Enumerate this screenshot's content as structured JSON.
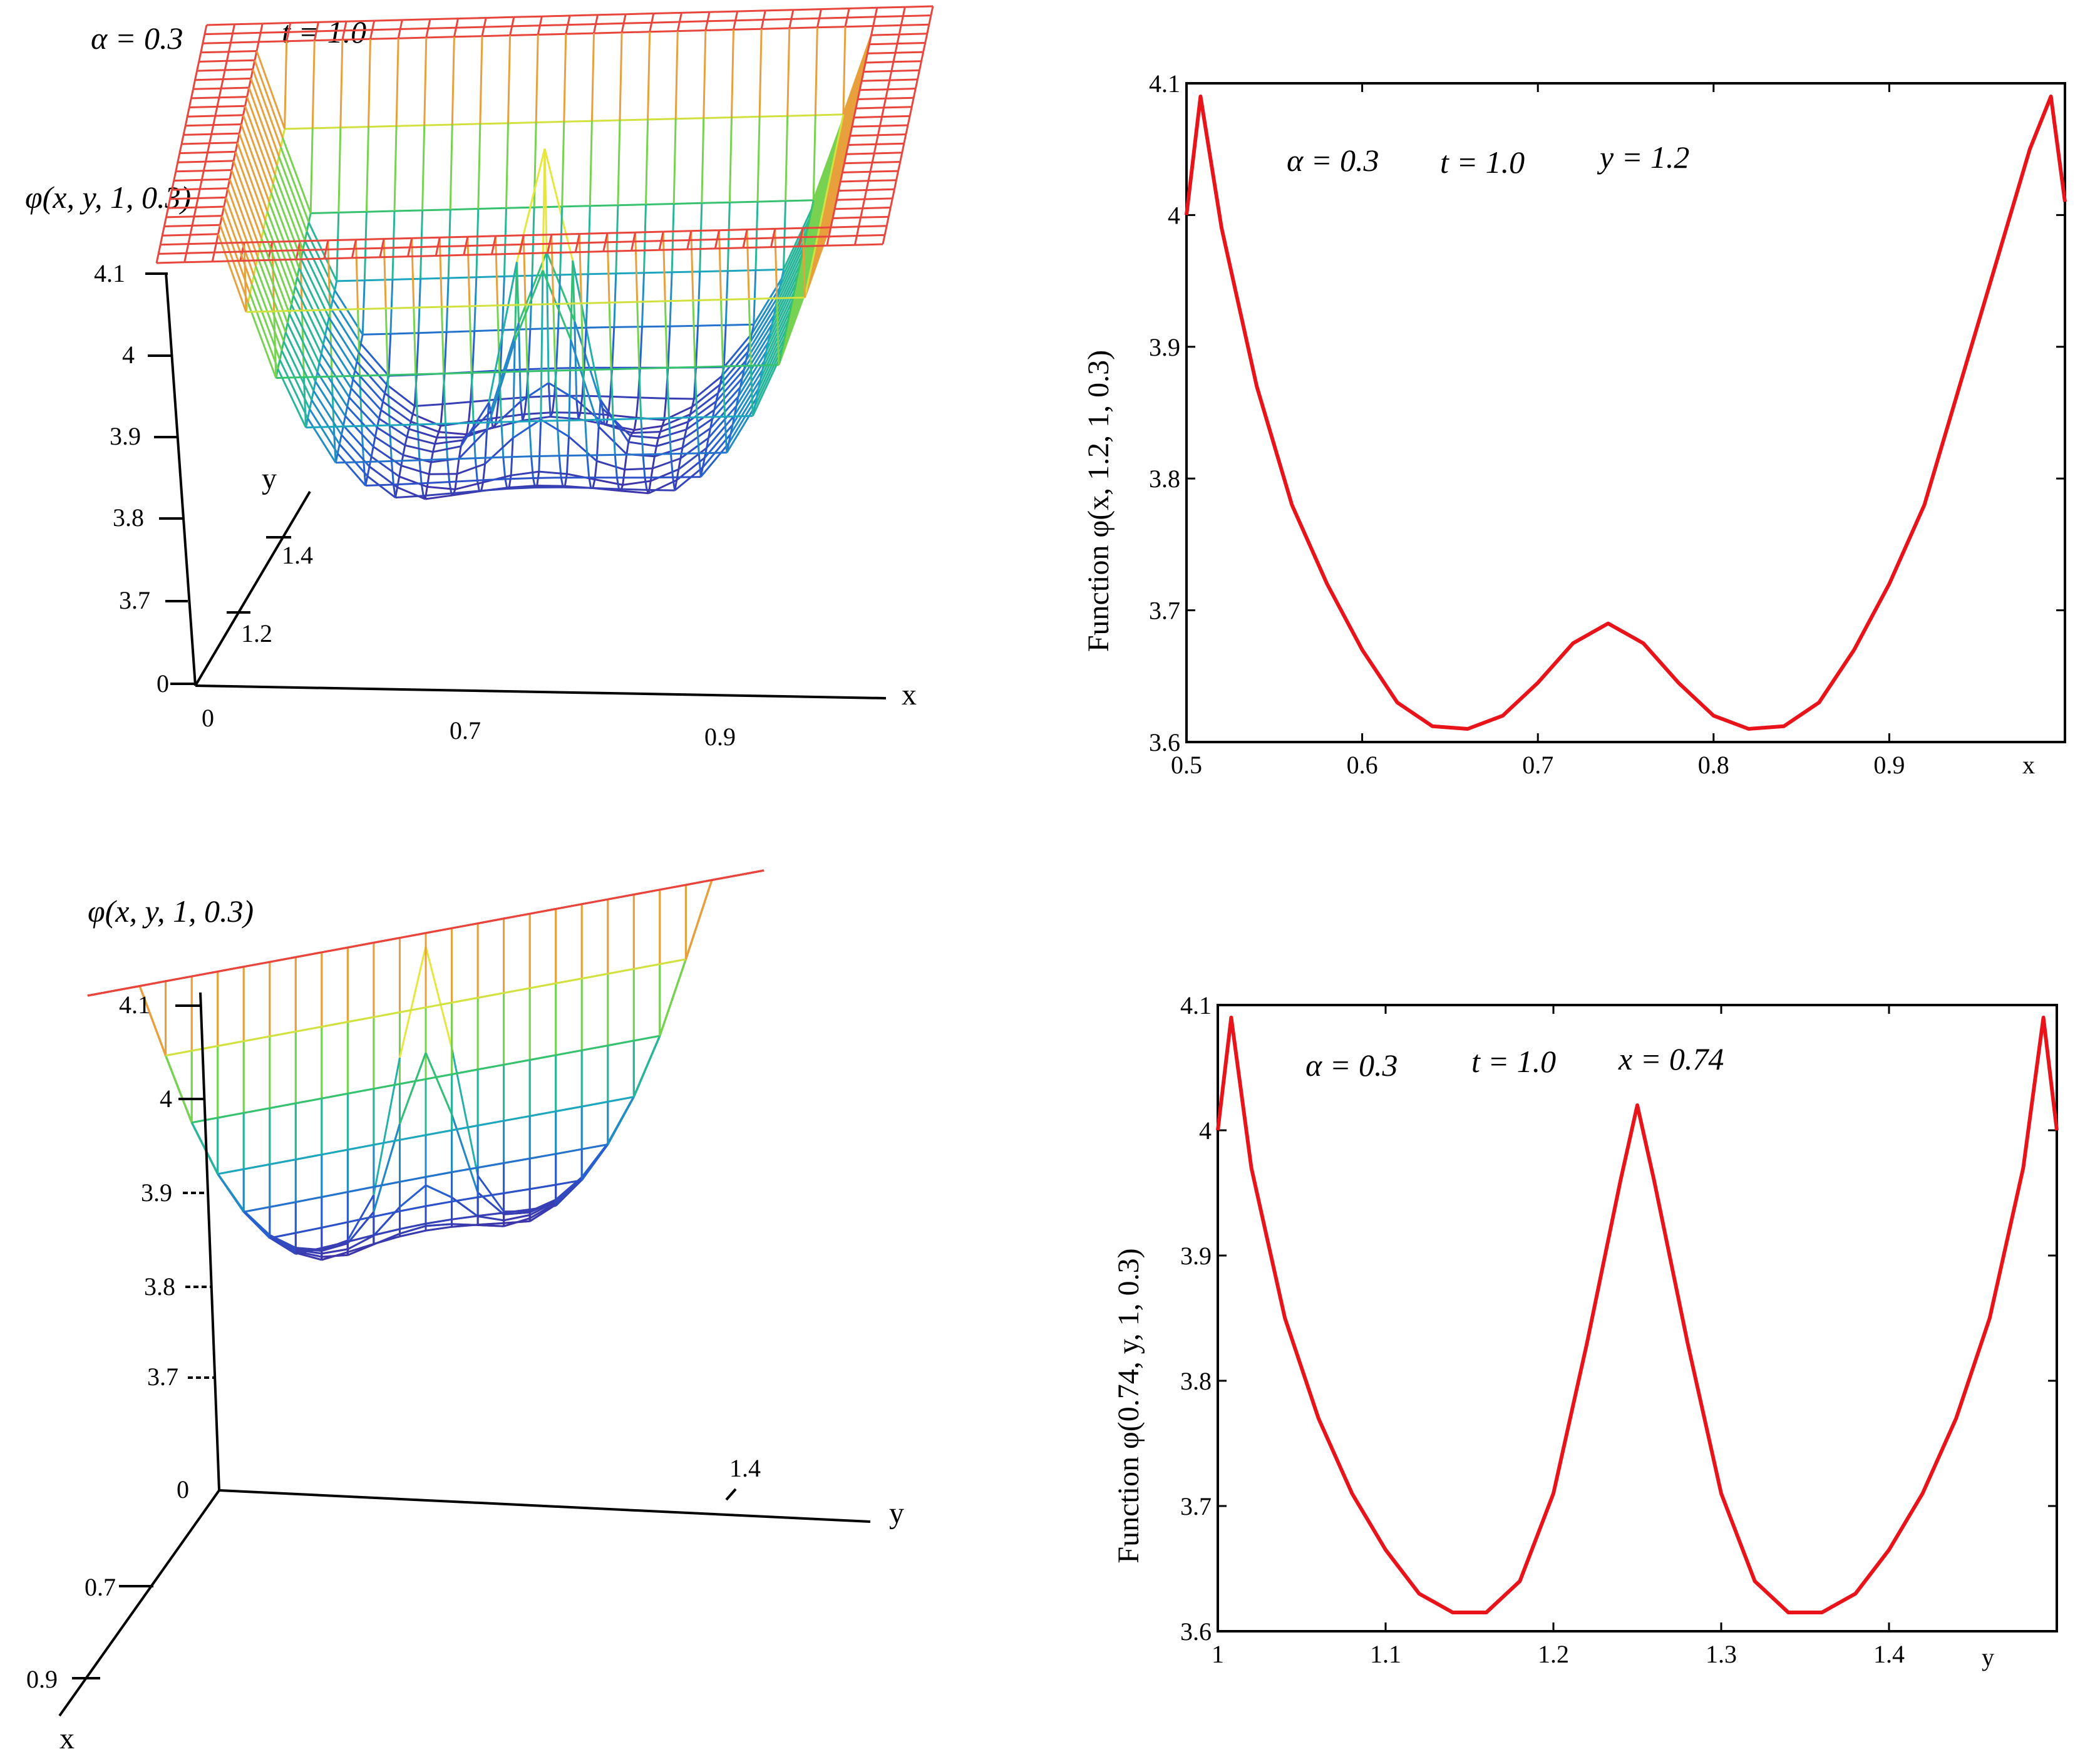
{
  "panels": {
    "top_left": {
      "params": {
        "alpha": "α = 0.3",
        "t": "t = 1.0"
      },
      "zlabel": "φ(x, y, 1, 0.3)",
      "z_ticks": [
        "4.1",
        "4",
        "3.9",
        "3.8",
        "3.7",
        "0"
      ],
      "x_axis": {
        "name": "x",
        "ticks": [
          "0",
          "0.7",
          "0.9"
        ]
      },
      "y_axis": {
        "name": "y",
        "ticks": [
          "1.4",
          "1.2"
        ]
      }
    },
    "bottom_left": {
      "zlabel": "φ(x, y, 1, 0.3)",
      "z_ticks": [
        "4.1",
        "4",
        "3.9",
        "3.8",
        "3.7",
        "0"
      ],
      "x_axis": {
        "name": "x",
        "ticks": [
          "0.7",
          "0.9"
        ]
      },
      "y_axis": {
        "name": "y",
        "ticks": [
          "1.4"
        ]
      }
    }
  },
  "colors": {
    "curve": "#e8141a",
    "mesh_low": "#4b1d8f",
    "mesh_high": "#e8463c"
  },
  "chart_data": [
    {
      "type": "surface",
      "title": "φ(x, y, 1, 0.3)",
      "annotations": [
        "α = 0.3",
        "t = 1.0"
      ],
      "xlabel": "x",
      "ylabel": "y",
      "zlabel": "φ(x, y, 1, 0.3)",
      "xlim": [
        0.5,
        1.0
      ],
      "ylim": [
        1.0,
        1.5
      ],
      "zlim": [
        3.6,
        4.1
      ],
      "corner_peak": 4.09,
      "center_peak": 4.02,
      "min": 3.61
    },
    {
      "type": "line",
      "annotations": [
        "α = 0.3",
        "t = 1.0",
        "y = 1.2"
      ],
      "xlabel": "x",
      "ylabel": "Function  φ(x, 1.2, 1, 0.3)",
      "xlim": [
        0.5,
        1.0
      ],
      "ylim": [
        3.6,
        4.1
      ],
      "xticks": [
        "0.5",
        "0.6",
        "0.7",
        "0.8",
        "0.9"
      ],
      "yticks": [
        "3.6",
        "3.7",
        "3.8",
        "3.9",
        "4",
        "4.1"
      ],
      "series": [
        {
          "name": "φ(x,1.2,1,0.3)",
          "x": [
            0.5,
            0.508,
            0.52,
            0.54,
            0.56,
            0.58,
            0.6,
            0.62,
            0.64,
            0.66,
            0.68,
            0.7,
            0.72,
            0.74,
            0.76,
            0.78,
            0.8,
            0.82,
            0.84,
            0.86,
            0.88,
            0.9,
            0.92,
            0.94,
            0.96,
            0.98,
            0.992,
            1.0
          ],
          "y": [
            4.0,
            4.09,
            3.99,
            3.87,
            3.78,
            3.72,
            3.67,
            3.63,
            3.612,
            3.61,
            3.62,
            3.645,
            3.675,
            3.69,
            3.675,
            3.645,
            3.62,
            3.61,
            3.612,
            3.63,
            3.67,
            3.72,
            3.78,
            3.87,
            3.96,
            4.05,
            4.09,
            4.01
          ]
        }
      ]
    },
    {
      "type": "surface",
      "title": "φ(x, y, 1, 0.3)",
      "xlabel": "x",
      "ylabel": "y",
      "zlabel": "φ(x, y, 1, 0.3)",
      "xlim": [
        0.5,
        1.0
      ],
      "ylim": [
        1.0,
        1.5
      ],
      "zlim": [
        3.6,
        4.1
      ],
      "corner_peak": 4.09,
      "center_peak": 4.02,
      "min": 3.61
    },
    {
      "type": "line",
      "annotations": [
        "α = 0.3",
        "t = 1.0",
        "x = 0.74"
      ],
      "xlabel": "y",
      "ylabel": "Function  φ(0.74, y, 1, 0.3)",
      "xlim": [
        1.0,
        1.5
      ],
      "ylim": [
        3.6,
        4.1
      ],
      "xticks": [
        "1",
        "1.1",
        "1.2",
        "1.3",
        "1.4"
      ],
      "yticks": [
        "3.6",
        "3.7",
        "3.8",
        "3.9",
        "4",
        "4.1"
      ],
      "series": [
        {
          "name": "φ(0.74,y,1,0.3)",
          "x": [
            1.0,
            1.008,
            1.02,
            1.04,
            1.06,
            1.08,
            1.1,
            1.12,
            1.14,
            1.16,
            1.18,
            1.2,
            1.22,
            1.24,
            1.25,
            1.26,
            1.28,
            1.3,
            1.32,
            1.34,
            1.36,
            1.38,
            1.4,
            1.42,
            1.44,
            1.46,
            1.48,
            1.492,
            1.5
          ],
          "y": [
            4.0,
            4.09,
            3.97,
            3.85,
            3.77,
            3.71,
            3.665,
            3.63,
            3.615,
            3.615,
            3.64,
            3.71,
            3.83,
            3.96,
            4.02,
            3.96,
            3.83,
            3.71,
            3.64,
            3.615,
            3.615,
            3.63,
            3.665,
            3.71,
            3.77,
            3.85,
            3.97,
            4.09,
            4.0
          ]
        }
      ]
    }
  ]
}
